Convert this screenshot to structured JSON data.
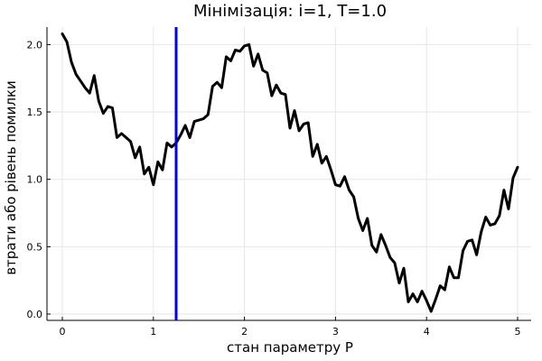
{
  "chart_data": {
    "type": "line",
    "title": "Мінімізація: i=1, T=1.0",
    "xlabel": "стан параметру P",
    "ylabel": "втрати або рівень помилки",
    "xlim": [
      0,
      5
    ],
    "ylim": [
      0,
      2.13
    ],
    "xticks": [
      0,
      1,
      2,
      3,
      4,
      5
    ],
    "xtick_labels": [
      "0",
      "1",
      "2",
      "3",
      "4",
      "5"
    ],
    "yticks": [
      0.0,
      0.5,
      1.0,
      1.5,
      2.0
    ],
    "ytick_labels": [
      "0.0",
      "0.5",
      "1.0",
      "1.5",
      "2.0"
    ],
    "grid": true,
    "legend": "none",
    "series": [
      {
        "color": "#000000",
        "x": [
          0.0,
          0.05,
          0.1,
          0.15,
          0.2,
          0.25,
          0.3,
          0.35,
          0.4,
          0.45,
          0.5,
          0.55,
          0.6,
          0.65,
          0.7,
          0.75,
          0.8,
          0.85,
          0.9,
          0.95,
          1.0,
          1.05,
          1.1,
          1.15,
          1.2,
          1.25,
          1.3,
          1.35,
          1.4,
          1.45,
          1.5,
          1.55,
          1.6,
          1.65,
          1.7,
          1.75,
          1.8,
          1.85,
          1.9,
          1.95,
          2.0,
          2.05,
          2.1,
          2.15,
          2.2,
          2.25,
          2.3,
          2.35,
          2.4,
          2.45,
          2.5,
          2.55,
          2.6,
          2.65,
          2.7,
          2.75,
          2.8,
          2.85,
          2.9,
          2.95,
          3.0,
          3.05,
          3.1,
          3.15,
          3.2,
          3.25,
          3.3,
          3.35,
          3.4,
          3.45,
          3.5,
          3.55,
          3.6,
          3.65,
          3.7,
          3.75,
          3.8,
          3.85,
          3.9,
          3.95,
          4.0,
          4.05,
          4.1,
          4.15,
          4.2,
          4.25,
          4.3,
          4.35,
          4.4,
          4.45,
          4.5,
          4.55,
          4.6,
          4.65,
          4.7,
          4.75,
          4.8,
          4.85,
          4.9,
          4.95,
          5.0
        ],
        "y": [
          2.08,
          2.02,
          1.87,
          1.78,
          1.73,
          1.68,
          1.64,
          1.77,
          1.58,
          1.49,
          1.54,
          1.53,
          1.31,
          1.34,
          1.31,
          1.28,
          1.16,
          1.24,
          1.04,
          1.09,
          0.96,
          1.13,
          1.07,
          1.27,
          1.24,
          1.27,
          1.33,
          1.4,
          1.31,
          1.43,
          1.44,
          1.45,
          1.48,
          1.69,
          1.72,
          1.68,
          1.91,
          1.88,
          1.96,
          1.95,
          1.99,
          2.0,
          1.84,
          1.93,
          1.81,
          1.79,
          1.62,
          1.7,
          1.64,
          1.63,
          1.38,
          1.51,
          1.36,
          1.41,
          1.42,
          1.17,
          1.26,
          1.12,
          1.17,
          1.07,
          0.96,
          0.95,
          1.02,
          0.92,
          0.87,
          0.71,
          0.62,
          0.71,
          0.51,
          0.46,
          0.59,
          0.51,
          0.42,
          0.38,
          0.23,
          0.34,
          0.09,
          0.15,
          0.09,
          0.17,
          0.1,
          0.02,
          0.11,
          0.21,
          0.18,
          0.35,
          0.27,
          0.27,
          0.47,
          0.54,
          0.55,
          0.44,
          0.61,
          0.72,
          0.66,
          0.67,
          0.73,
          0.92,
          0.78,
          1.01,
          1.09
        ]
      }
    ],
    "vline": {
      "x": 1.25,
      "color": "#0000ee"
    }
  }
}
